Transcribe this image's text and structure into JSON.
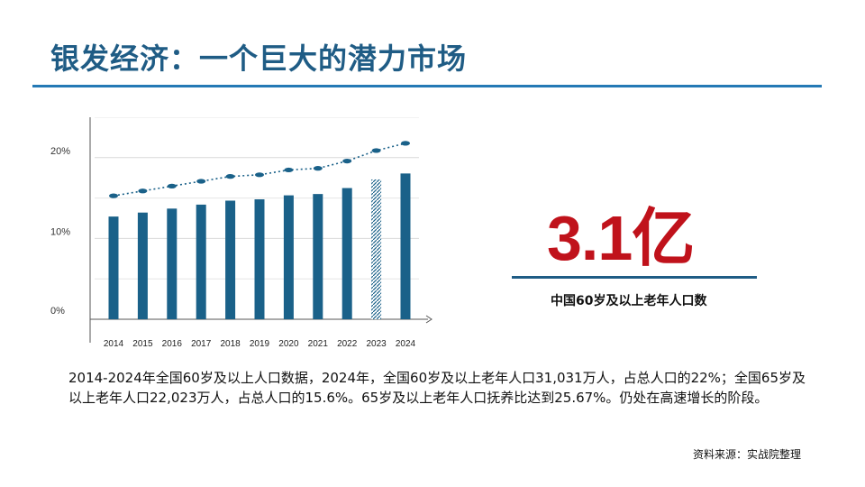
{
  "slide": {
    "title": "银发经济：一个巨大的潜力市场",
    "headline_number": "3.1亿",
    "headline_caption": "中国60岁及以上老年人口数",
    "paragraph": "2014-2024年全国60岁及以上人口数据，2024年，全国60岁及以上老年人口31,031万人，占总人口的22%；全国65岁及以上老年人口22,023万人，占总人口的15.6%。65岁及以上老年人口抚养比达到25.67%。仍处在高速增长的阶段。",
    "source": "资料来源：实战院整理"
  },
  "colors": {
    "title": "#1f5c85",
    "rule": "#2479b5",
    "bar": "#1a6189",
    "highlight": "#c0121b",
    "grid": "#d9d9d9"
  },
  "chart_data": {
    "type": "bar",
    "categories": [
      "2014",
      "2015",
      "2016",
      "2017",
      "2018",
      "2019",
      "2020",
      "2021",
      "2022",
      "2023",
      "2024"
    ],
    "series": [
      {
        "values": [
          15.5,
          16.1,
          16.7,
          17.3,
          17.9,
          18.1,
          18.7,
          18.9,
          19.8,
          21.1,
          22.0
        ]
      },
      {
        "values": [
          15.5,
          16.1,
          16.7,
          17.3,
          17.9,
          18.1,
          18.7,
          18.9,
          19.8,
          21.1,
          22.0
        ],
        "style": "dotted-line"
      }
    ],
    "hatched_category": "2023",
    "yticks": [
      "0%",
      "10%",
      "20%"
    ],
    "ylim": [
      0,
      25
    ],
    "grid": true
  }
}
